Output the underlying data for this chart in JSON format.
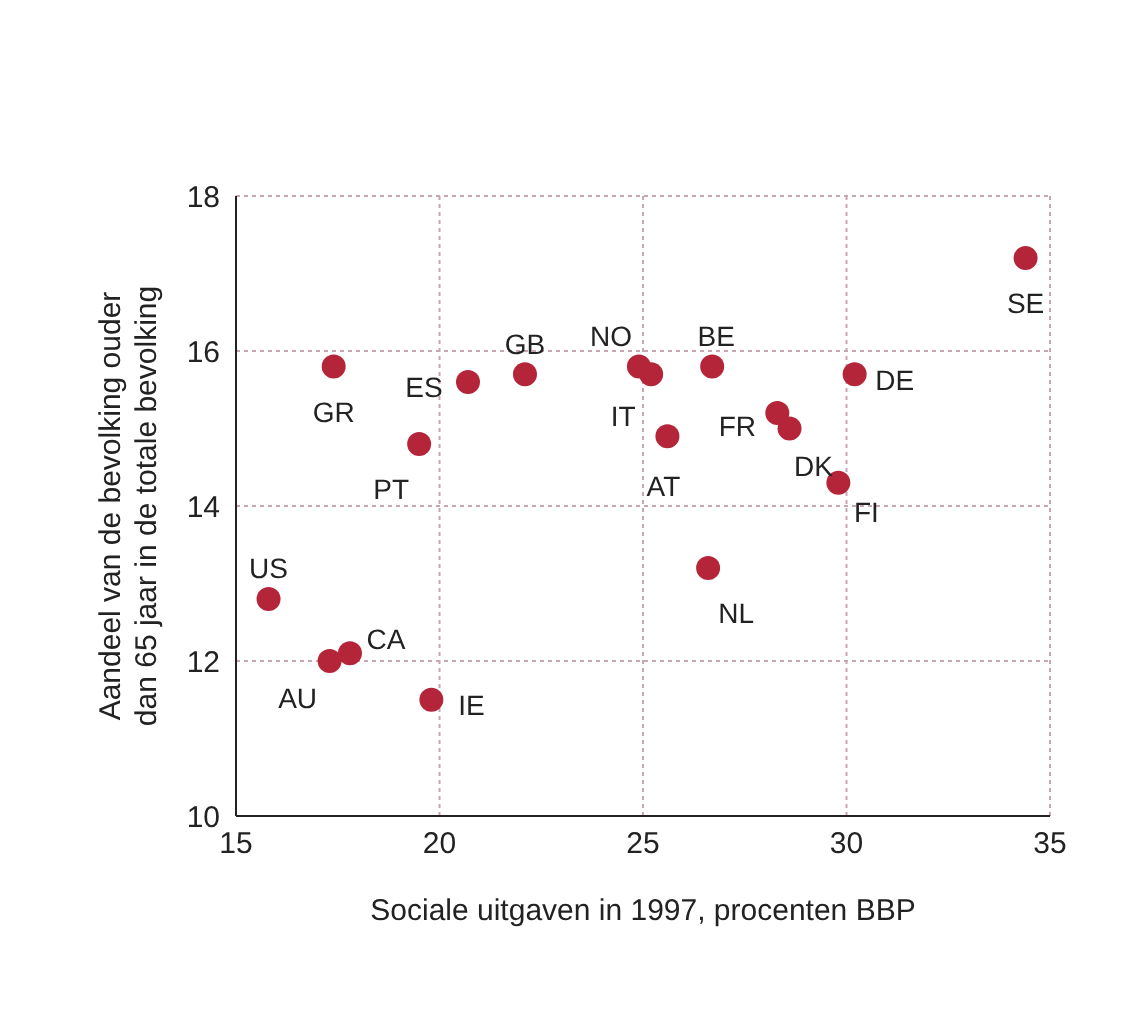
{
  "chart_data": {
    "type": "scatter",
    "xlabel": "Sociale uitgaven in 1997, procenten BBP",
    "ylabel": "Aandeel van de bevolking ouder dan 65 jaar in de totale bevolking",
    "x": [
      17.4,
      20.7,
      22.1,
      24.9,
      25.2,
      19.5,
      15.8,
      17.3,
      17.8,
      19.8,
      25.6,
      26.7,
      28.3,
      28.6,
      30.2,
      29.8,
      26.6,
      34.4
    ],
    "values": [
      15.8,
      15.6,
      15.7,
      15.8,
      15.7,
      14.8,
      12.8,
      12.0,
      12.1,
      11.5,
      14.9,
      15.8,
      15.2,
      15.0,
      15.7,
      14.3,
      13.2,
      17.2
    ],
    "color": "#b5253a",
    "marker": "circle",
    "xlim": [
      15,
      35
    ],
    "xticks": [
      15,
      20,
      25,
      30,
      35
    ],
    "ylim": [
      10,
      18
    ],
    "yticks": [
      10,
      12,
      14,
      16,
      18
    ],
    "grid": true,
    "annotations": [
      {
        "text": "GR",
        "x": 17.4,
        "y": 15.8
      },
      {
        "text": "ES",
        "x": 20.7,
        "y": 15.6
      },
      {
        "text": "GB",
        "x": 22.1,
        "y": 15.7
      },
      {
        "text": "NO",
        "x": 24.9,
        "y": 15.8
      },
      {
        "text": "IT",
        "x": 25.2,
        "y": 15.7
      },
      {
        "text": "PT",
        "x": 19.5,
        "y": 14.8
      },
      {
        "text": "US",
        "x": 15.8,
        "y": 12.8
      },
      {
        "text": "AU",
        "x": 17.3,
        "y": 12.0
      },
      {
        "text": "CA",
        "x": 17.8,
        "y": 12.1
      },
      {
        "text": "IE",
        "x": 19.8,
        "y": 11.5
      },
      {
        "text": "AT",
        "x": 25.6,
        "y": 14.9
      },
      {
        "text": "BE",
        "x": 26.7,
        "y": 15.8
      },
      {
        "text": "FR",
        "x": 28.3,
        "y": 15.2
      },
      {
        "text": "DK",
        "x": 28.6,
        "y": 15.0
      },
      {
        "text": "DE",
        "x": 30.2,
        "y": 15.7
      },
      {
        "text": "FI",
        "x": 29.8,
        "y": 14.3
      },
      {
        "text": "NL",
        "x": 26.6,
        "y": 13.2
      },
      {
        "text": "SE",
        "x": 34.4,
        "y": 17.2
      }
    ]
  }
}
